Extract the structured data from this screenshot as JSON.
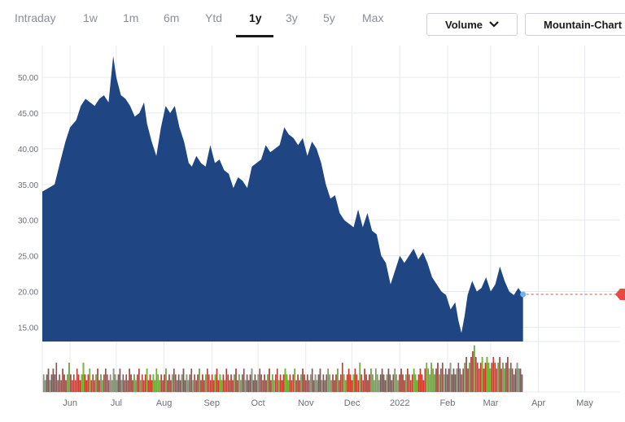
{
  "toolbar": {
    "ranges": [
      "Intraday",
      "1w",
      "1m",
      "6m",
      "Ytd",
      "1y",
      "3y",
      "5y",
      "Max"
    ],
    "active_range": "1y",
    "volume_label": "Volume",
    "chart_type_label": "Mountain-Chart"
  },
  "colors": {
    "price_fill": "#1f4682",
    "volume_up": "#7bbf3a",
    "volume_down": "#d33a2c",
    "last_price_marker": "#e84a3f",
    "last_point_dot": "#6ab7f0",
    "grid": "#e6e9ed"
  },
  "chart_data": {
    "type": "area",
    "title": "",
    "xlabel": "",
    "ylabel": "",
    "ylim": [
      13,
      54
    ],
    "yticks": [
      15,
      20,
      25,
      30,
      35,
      40,
      45,
      50
    ],
    "ytick_labels": [
      "15.00",
      "20.00",
      "25.00",
      "30.00",
      "35.00",
      "40.00",
      "45.00",
      "50.00"
    ],
    "xtick_labels": [
      "Jun",
      "Jul",
      "Aug",
      "Sep",
      "Oct",
      "Nov",
      "Dec",
      "2022",
      "Feb",
      "Mar",
      "Apr",
      "May"
    ],
    "x_domain_days": [
      0,
      375
    ],
    "xtick_days": [
      18,
      48,
      79,
      110,
      140,
      171,
      201,
      232,
      263,
      291,
      322,
      352
    ],
    "series": [
      {
        "values": [
          [
            0,
            34.0
          ],
          [
            4,
            34.5
          ],
          [
            8,
            35.0
          ],
          [
            12,
            38.5
          ],
          [
            15,
            41.0
          ],
          [
            18,
            43.0
          ],
          [
            22,
            44.0
          ],
          [
            25,
            46.0
          ],
          [
            28,
            47.0
          ],
          [
            31,
            46.5
          ],
          [
            34,
            46.0
          ],
          [
            37,
            47.0
          ],
          [
            40,
            47.5
          ],
          [
            43,
            46.5
          ],
          [
            46,
            53.0
          ],
          [
            48,
            50.0
          ],
          [
            51,
            47.5
          ],
          [
            54,
            47.0
          ],
          [
            57,
            46.0
          ],
          [
            60,
            44.5
          ],
          [
            63,
            45.0
          ],
          [
            66,
            46.5
          ],
          [
            68,
            43.5
          ],
          [
            71,
            41.0
          ],
          [
            74,
            39.0
          ],
          [
            77,
            43.0
          ],
          [
            80,
            46.0
          ],
          [
            83,
            45.0
          ],
          [
            86,
            46.0
          ],
          [
            89,
            43.0
          ],
          [
            92,
            41.0
          ],
          [
            95,
            38.0
          ],
          [
            97,
            37.5
          ],
          [
            100,
            39.0
          ],
          [
            103,
            38.0
          ],
          [
            106,
            37.5
          ],
          [
            109,
            40.5
          ],
          [
            112,
            38.0
          ],
          [
            115,
            38.5
          ],
          [
            118,
            37.0
          ],
          [
            121,
            36.5
          ],
          [
            124,
            34.5
          ],
          [
            127,
            36.0
          ],
          [
            130,
            35.5
          ],
          [
            133,
            34.5
          ],
          [
            136,
            37.5
          ],
          [
            139,
            38.0
          ],
          [
            142,
            38.5
          ],
          [
            145,
            40.5
          ],
          [
            148,
            39.5
          ],
          [
            151,
            40.0
          ],
          [
            154,
            40.5
          ],
          [
            157,
            43.0
          ],
          [
            160,
            42.0
          ],
          [
            163,
            41.5
          ],
          [
            166,
            40.5
          ],
          [
            169,
            41.5
          ],
          [
            172,
            39.0
          ],
          [
            175,
            41.0
          ],
          [
            178,
            40.0
          ],
          [
            181,
            38.0
          ],
          [
            184,
            35.0
          ],
          [
            187,
            33.0
          ],
          [
            190,
            33.5
          ],
          [
            193,
            31.0
          ],
          [
            196,
            30.0
          ],
          [
            199,
            29.5
          ],
          [
            202,
            29.0
          ],
          [
            205,
            31.5
          ],
          [
            208,
            29.0
          ],
          [
            211,
            31.0
          ],
          [
            214,
            28.5
          ],
          [
            217,
            28.0
          ],
          [
            220,
            25.0
          ],
          [
            223,
            24.0
          ],
          [
            226,
            21.0
          ],
          [
            229,
            23.0
          ],
          [
            232,
            25.0
          ],
          [
            235,
            24.0
          ],
          [
            238,
            25.0
          ],
          [
            241,
            26.0
          ],
          [
            244,
            24.5
          ],
          [
            247,
            25.5
          ],
          [
            250,
            24.0
          ],
          [
            253,
            22.0
          ],
          [
            256,
            21.0
          ],
          [
            259,
            20.0
          ],
          [
            262,
            19.5
          ],
          [
            265,
            17.5
          ],
          [
            268,
            18.5
          ],
          [
            270,
            16.0
          ],
          [
            272,
            14.2
          ],
          [
            274,
            16.5
          ],
          [
            276,
            19.5
          ],
          [
            279,
            21.5
          ],
          [
            282,
            20.0
          ],
          [
            285,
            20.5
          ],
          [
            288,
            22.0
          ],
          [
            291,
            20.0
          ],
          [
            294,
            21.0
          ],
          [
            297,
            23.5
          ],
          [
            300,
            21.5
          ],
          [
            303,
            20.0
          ],
          [
            306,
            19.5
          ],
          [
            309,
            20.5
          ],
          [
            312,
            19.5
          ]
        ]
      }
    ],
    "last_price": 19.6,
    "volume": [
      3,
      2,
      3,
      4,
      2,
      3,
      4,
      3,
      5,
      2,
      3,
      2,
      4,
      3,
      2,
      3,
      5,
      3,
      2,
      3,
      2,
      4,
      3,
      2,
      3,
      5,
      3,
      2,
      3,
      4,
      2,
      3,
      2,
      3,
      4,
      2,
      3,
      2,
      3,
      4,
      3,
      2,
      3,
      2,
      4,
      3,
      2,
      3,
      4,
      2,
      3,
      2,
      3,
      2,
      4,
      3,
      2,
      3,
      2,
      3,
      4,
      2,
      3,
      2,
      3,
      4,
      2,
      3,
      2,
      3,
      2,
      4,
      3,
      2,
      3,
      2,
      3,
      4,
      2,
      3,
      2,
      3,
      4,
      3,
      2,
      3,
      2,
      3,
      4,
      2,
      3,
      2,
      3,
      4,
      2,
      3,
      2,
      3,
      4,
      2,
      3,
      2,
      3,
      4,
      3,
      2,
      3,
      2,
      3,
      4,
      2,
      3,
      2,
      3,
      2,
      4,
      3,
      2,
      3,
      2,
      3,
      4,
      2,
      3,
      2,
      3,
      4,
      2,
      3,
      2,
      3,
      4,
      2,
      3,
      2,
      3,
      4,
      3,
      2,
      3,
      2,
      3,
      4,
      2,
      3,
      2,
      3,
      4,
      2,
      3,
      2,
      3,
      4,
      3,
      2,
      3,
      2,
      3,
      4,
      2,
      3,
      2,
      3,
      4,
      3,
      2,
      3,
      2,
      3,
      4,
      2,
      3,
      2,
      3,
      4,
      2,
      3,
      2,
      3,
      4,
      3,
      2,
      3,
      2,
      3,
      4,
      2,
      3,
      5,
      3,
      2,
      3,
      4,
      3,
      2,
      3,
      4,
      3,
      2,
      5,
      3,
      2,
      4,
      3,
      2,
      3,
      4,
      3,
      2,
      4,
      3,
      2,
      3,
      4,
      3,
      2,
      3,
      4,
      3,
      2,
      3,
      4,
      3,
      2,
      3,
      4,
      3,
      2,
      3,
      4,
      3,
      2,
      3,
      4,
      3,
      2,
      3,
      4,
      3,
      2,
      4,
      5,
      4,
      3,
      5,
      4,
      3,
      4,
      5,
      3,
      4,
      5,
      3,
      4,
      3,
      4,
      5,
      3,
      4,
      3,
      4,
      5,
      4,
      3,
      4,
      5,
      6,
      4,
      5,
      6,
      7,
      8,
      6,
      5,
      4,
      5,
      6,
      4,
      5,
      6,
      5,
      4,
      5,
      6,
      5,
      4,
      5,
      6,
      4,
      5,
      4,
      5,
      6,
      4,
      5,
      4,
      3,
      4,
      5,
      4,
      4,
      3
    ]
  }
}
